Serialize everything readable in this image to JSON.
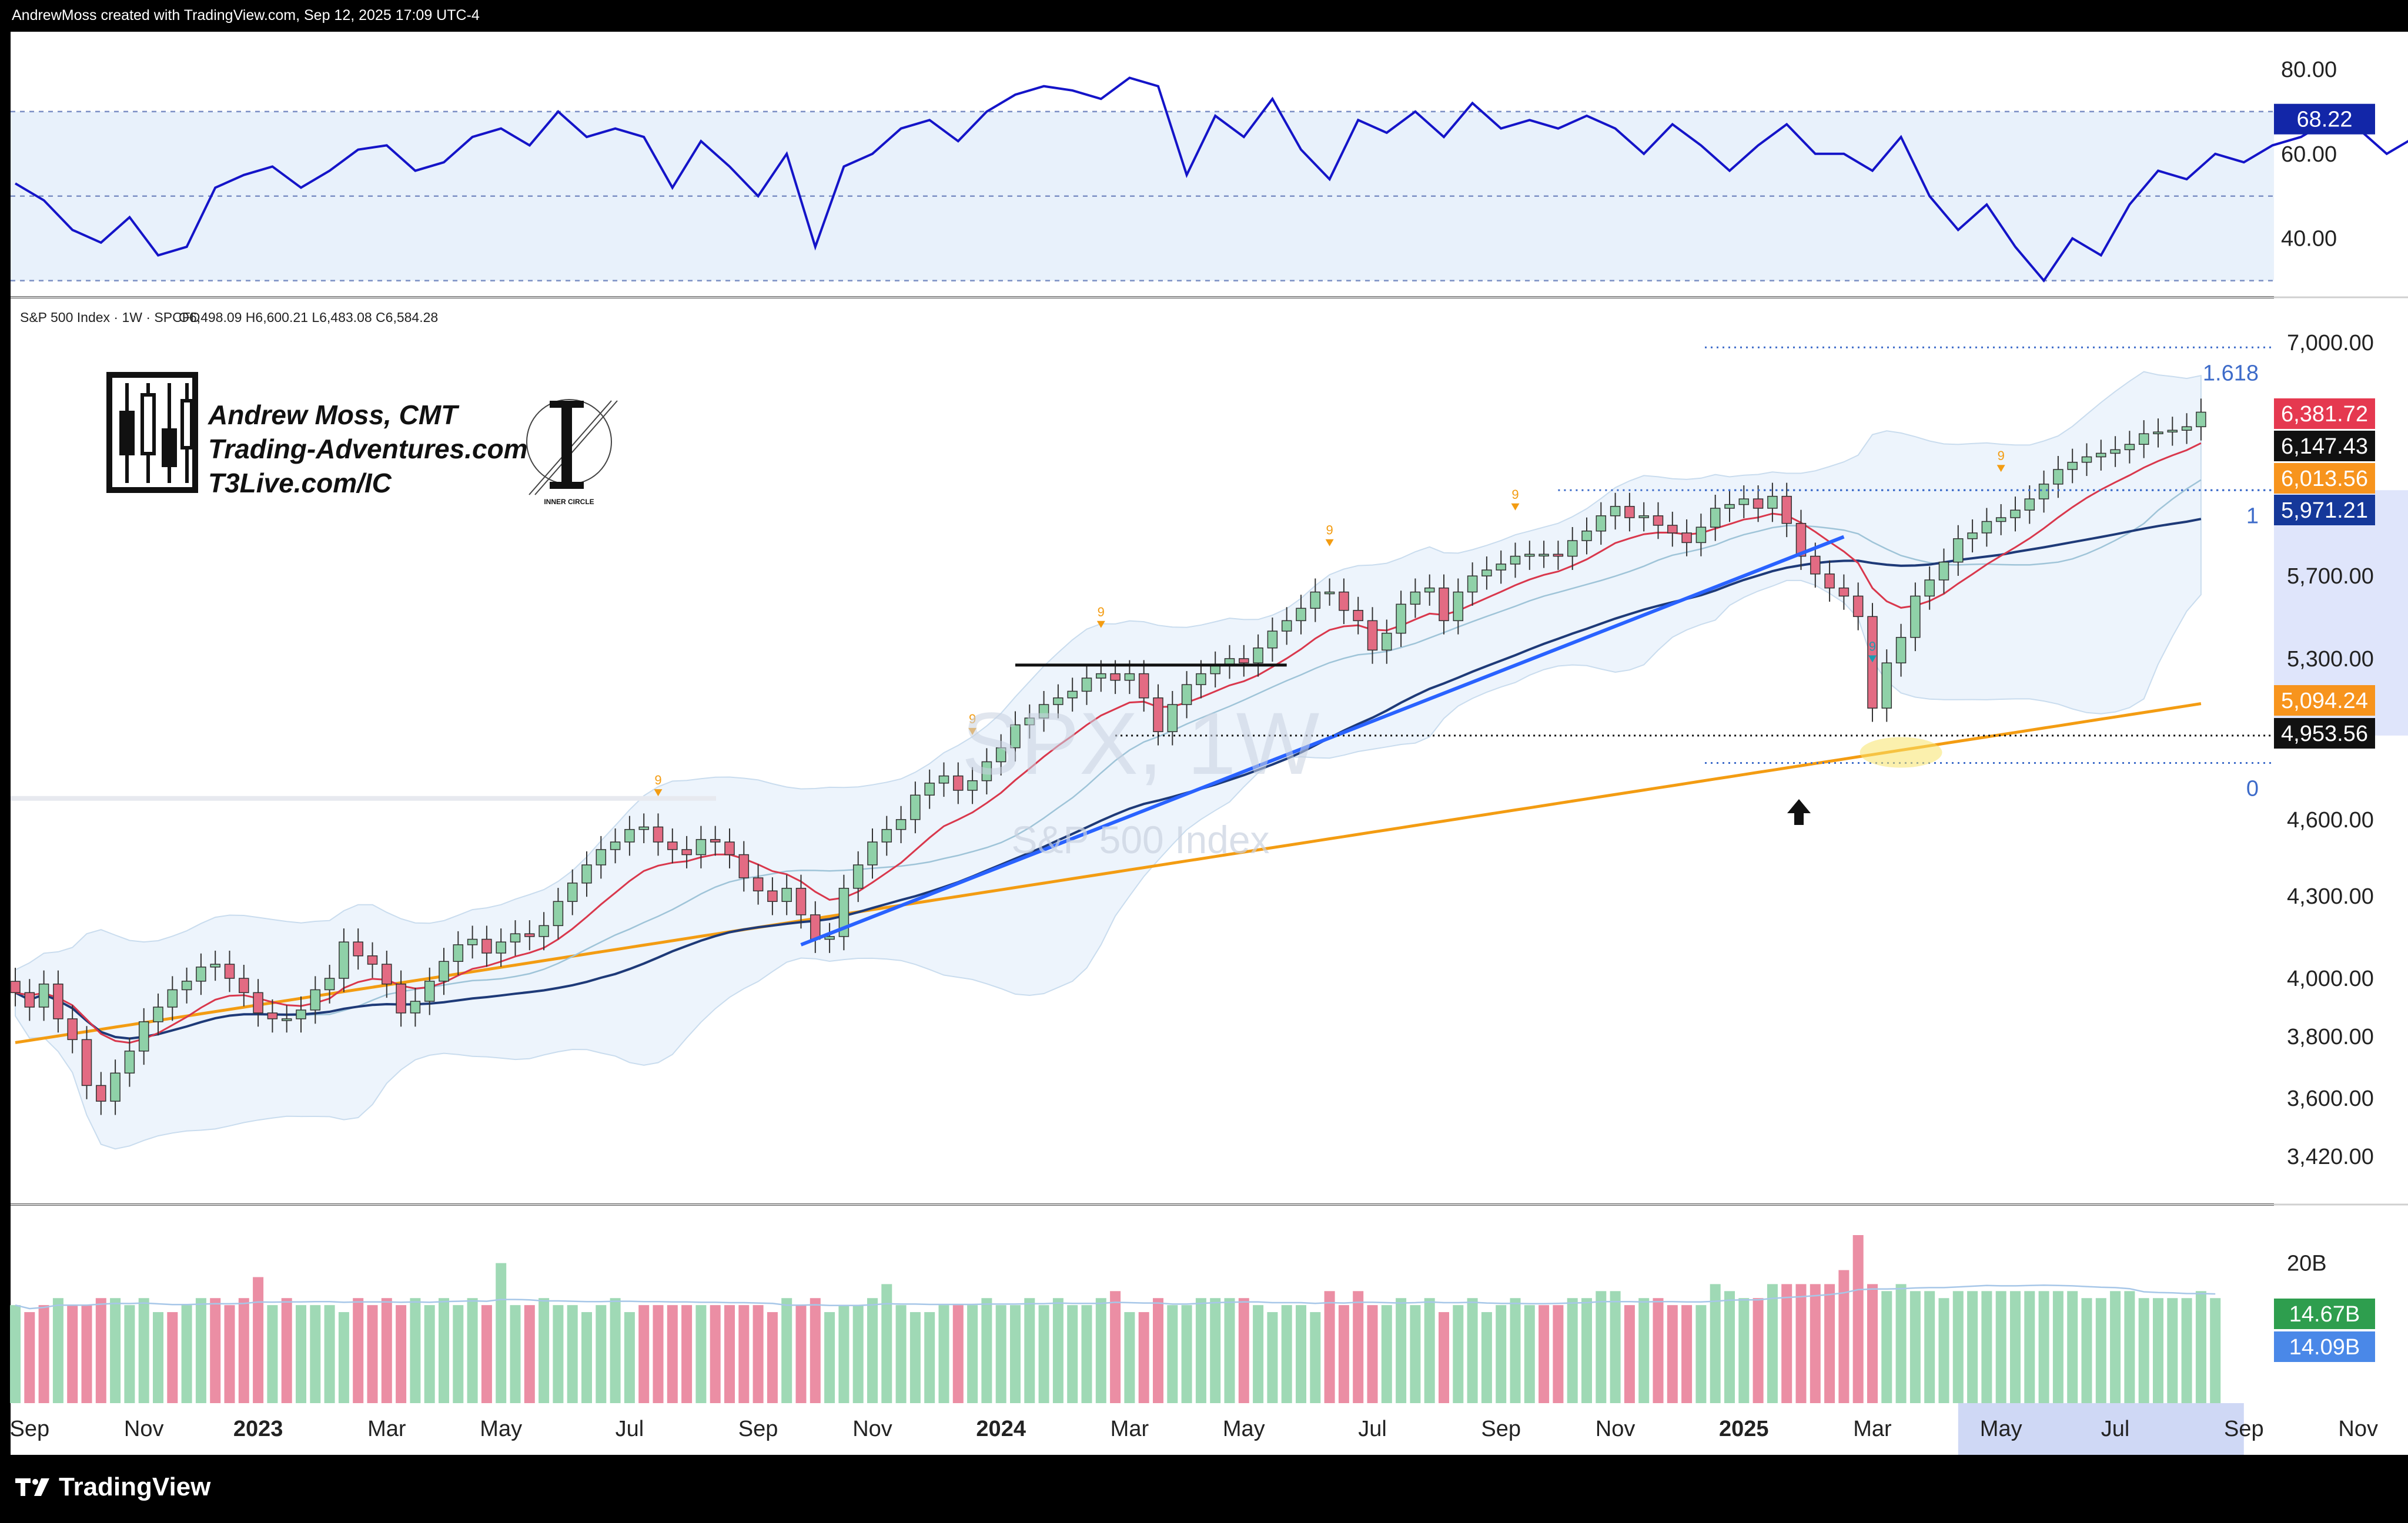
{
  "header": {
    "credit": "AndrewMoss created with TradingView.com, Sep 12, 2025 17:09 UTC-4"
  },
  "footer": {
    "brand": "TradingView"
  },
  "colors": {
    "up": "#8fd1a8",
    "down": "#e36b83",
    "ema": "#d9374c",
    "sma50": "#1e3a78",
    "sma200": "#f39c12",
    "sma_light": "#9fc4d8",
    "trend": "#2962ff",
    "rsi": "#1414c8",
    "band_fill": "#e8f1fb",
    "tag_red": "#e53950",
    "tag_black": "#111111",
    "tag_orange": "#f7941d",
    "tag_navy": "#15389a",
    "tag_blue": "#4a88e8",
    "tag_green": "#2e9e4e",
    "fib_blue": "#3d6bc9",
    "highlight": "#f8e36a"
  },
  "chart_data": [
    {
      "type": "line",
      "name": "RSI",
      "y_ticks": [
        "80.00",
        "60.00",
        "40.00"
      ],
      "y_tick_values": [
        80,
        60,
        40
      ],
      "ylim": [
        28,
        85
      ],
      "levels": [
        70,
        50,
        30
      ],
      "current_value": "68.22",
      "x_weeks": [
        0,
        2,
        4,
        6,
        8,
        10,
        12,
        14,
        16,
        18,
        20,
        22,
        24,
        26,
        28,
        30,
        32,
        34,
        36,
        38,
        40,
        42,
        44,
        46,
        48,
        50,
        52,
        54,
        56,
        58,
        60,
        62,
        64,
        66,
        68,
        70,
        72,
        74,
        76,
        78,
        80,
        82,
        84,
        86,
        88,
        90,
        92,
        94,
        96,
        98,
        100,
        102,
        104,
        106,
        108,
        110,
        112,
        114,
        116,
        118,
        120,
        122,
        124,
        126,
        128,
        130,
        132,
        134,
        136,
        138,
        140,
        142,
        144,
        146,
        148,
        150,
        152,
        154,
        156,
        158,
        160,
        162,
        164,
        166,
        168,
        170,
        172,
        174,
        176,
        178
      ],
      "values": [
        53,
        49,
        42,
        39,
        45,
        36,
        38,
        52,
        55,
        57,
        52,
        56,
        61,
        62,
        56,
        58,
        64,
        66,
        62,
        70,
        64,
        66,
        64,
        52,
        63,
        57,
        50,
        60,
        38,
        57,
        60,
        66,
        68,
        63,
        70,
        74,
        76,
        75,
        73,
        78,
        76,
        55,
        69,
        64,
        73,
        61,
        54,
        68,
        65,
        70,
        64,
        72,
        66,
        68,
        66,
        69,
        66,
        60,
        67,
        62,
        56,
        62,
        67,
        60,
        60,
        56,
        64,
        50,
        42,
        48,
        38,
        30,
        40,
        36,
        48,
        56,
        54,
        60,
        58,
        62,
        64,
        68,
        66,
        60,
        64,
        68,
        68,
        68,
        70,
        71
      ]
    },
    {
      "type": "candlestick",
      "name": "SPX",
      "legend": "S&P 500 Index · 1W · SPCFD",
      "ohlc_legend": "O6,498.09 H6,600.21 L6,483.08 C6,584.28",
      "watermark_symbol": "SPX, 1W",
      "watermark_name": "S&P 500 Index",
      "y_ticks": [
        "7,000.00",
        "5,700.00",
        "5,300.00",
        "4,600.00",
        "4,300.00",
        "4,000.00",
        "3,800.00",
        "3,600.00",
        "3,420.00"
      ],
      "y_tick_values": [
        7000,
        5700,
        5300,
        4600,
        4300,
        4000,
        3800,
        3600,
        3420
      ],
      "ylim": [
        3300,
        7150
      ],
      "log_scale": true,
      "fib_levels": [
        {
          "label": "1.618",
          "value": 6970
        },
        {
          "label": "1",
          "value": 6147
        },
        {
          "label": "0",
          "value": 4835
        }
      ],
      "price_tags": [
        {
          "value": "6,381.72",
          "num": 6381.72,
          "color": "#e53950"
        },
        {
          "value": "6,147.43",
          "num": 6147.43,
          "color": "#111111"
        },
        {
          "value": "6,013.56",
          "num": 6013.56,
          "color": "#f7941d"
        },
        {
          "value": "5,971.21",
          "num": 5971.21,
          "color": "#15389a"
        },
        {
          "value": "5,094.24",
          "num": 5094.24,
          "color": "#f7941d"
        },
        {
          "value": "4,953.56",
          "num": 4953.56,
          "color": "#111111"
        }
      ],
      "x_labels": [
        {
          "label": "Sep",
          "week": 1,
          "bold": false
        },
        {
          "label": "Nov",
          "week": 9,
          "bold": false
        },
        {
          "label": "2023",
          "week": 17,
          "bold": true
        },
        {
          "label": "Mar",
          "week": 26,
          "bold": false
        },
        {
          "label": "May",
          "week": 34,
          "bold": false
        },
        {
          "label": "Jul",
          "week": 43,
          "bold": false
        },
        {
          "label": "Sep",
          "week": 52,
          "bold": false
        },
        {
          "label": "Nov",
          "week": 60,
          "bold": false
        },
        {
          "label": "2024",
          "week": 69,
          "bold": true
        },
        {
          "label": "Mar",
          "week": 78,
          "bold": false
        },
        {
          "label": "May",
          "week": 86,
          "bold": false
        },
        {
          "label": "Jul",
          "week": 95,
          "bold": false
        },
        {
          "label": "Sep",
          "week": 104,
          "bold": false
        },
        {
          "label": "Nov",
          "week": 112,
          "bold": false
        },
        {
          "label": "2025",
          "week": 121,
          "bold": true
        },
        {
          "label": "Mar",
          "week": 130,
          "bold": false
        },
        {
          "label": "May",
          "week": 139,
          "bold": false
        },
        {
          "label": "Jul",
          "week": 147,
          "bold": false
        },
        {
          "label": "Sep",
          "week": 156,
          "bold": false
        },
        {
          "label": "Nov",
          "week": 164,
          "bold": false
        }
      ],
      "closes": [
        3950,
        3900,
        3980,
        3860,
        3790,
        3640,
        3590,
        3680,
        3752,
        3850,
        3900,
        3960,
        3990,
        4040,
        4050,
        4000,
        3950,
        3880,
        3860,
        3860,
        3890,
        3960,
        4000,
        4130,
        4080,
        4050,
        3980,
        3880,
        3920,
        3990,
        4060,
        4120,
        4140,
        4090,
        4130,
        4160,
        4150,
        4190,
        4280,
        4350,
        4420,
        4480,
        4510,
        4560,
        4570,
        4510,
        4480,
        4460,
        4520,
        4510,
        4460,
        4370,
        4320,
        4280,
        4330,
        4230,
        4140,
        4150,
        4330,
        4420,
        4510,
        4560,
        4600,
        4700,
        4750,
        4780,
        4720,
        4760,
        4840,
        4900,
        5000,
        5030,
        5090,
        5120,
        5150,
        5210,
        5230,
        5200,
        5230,
        5120,
        4970,
        5090,
        5180,
        5230,
        5270,
        5300,
        5280,
        5350,
        5430,
        5480,
        5540,
        5620,
        5620,
        5530,
        5480,
        5340,
        5420,
        5560,
        5620,
        5640,
        5480,
        5620,
        5700,
        5730,
        5760,
        5800,
        5810,
        5810,
        5800,
        5880,
        5930,
        6010,
        6060,
        6000,
        6010,
        5960,
        5920,
        5870,
        5950,
        6050,
        6070,
        6100,
        6050,
        6114,
        5970,
        5800,
        5710,
        5640,
        5600,
        5500,
        5074,
        5280,
        5400,
        5600,
        5680,
        5770,
        5890,
        5920,
        5980,
        6000,
        6040,
        6100,
        6180,
        6260,
        6300,
        6330,
        6350,
        6370,
        6400,
        6460,
        6470,
        6480,
        6500,
        6584
      ],
      "annotations": [
        {
          "text": "9",
          "week": 45,
          "color": "#f39c12"
        },
        {
          "text": "9",
          "week": 67,
          "color": "#f39c12"
        },
        {
          "text": "9",
          "week": 76,
          "color": "#f39c12"
        },
        {
          "text": "9",
          "week": 92,
          "color": "#f39c12"
        },
        {
          "text": "9",
          "week": 105,
          "color": "#f39c12"
        },
        {
          "text": "9",
          "week": 139,
          "color": "#f39c12"
        },
        {
          "text": "9",
          "week": 130,
          "color": "#1a9bb0"
        }
      ]
    },
    {
      "type": "bar",
      "name": "Volume",
      "y_ticks": [
        "20B"
      ],
      "y_tick_values": [
        20
      ],
      "ylim": [
        0,
        24
      ],
      "tags": [
        {
          "value": "14.67B",
          "color": "#2e9e4e"
        },
        {
          "value": "14.09B",
          "color": "#4a88e8"
        }
      ],
      "values": [
        14,
        13,
        14,
        15,
        14,
        14,
        15,
        15,
        14,
        15,
        13,
        13,
        14,
        15,
        15,
        14,
        15,
        18,
        14,
        15,
        14,
        14,
        14,
        13,
        15,
        14,
        15,
        14,
        15,
        14,
        15,
        14,
        15,
        14,
        20,
        14,
        14,
        15,
        14,
        14,
        13,
        14,
        15,
        13,
        14,
        14,
        14,
        14,
        14,
        14,
        14,
        14,
        14,
        13,
        15,
        14,
        15,
        13,
        14,
        14,
        15,
        17,
        14,
        13,
        13,
        14,
        14,
        14,
        15,
        14,
        14,
        15,
        14,
        15,
        14,
        14,
        15,
        16,
        13,
        13,
        15,
        14,
        14,
        15,
        15,
        15,
        15,
        14,
        13,
        14,
        14,
        13,
        16,
        14,
        16,
        14,
        14,
        15,
        14,
        15,
        13,
        14,
        15,
        13,
        14,
        15,
        14,
        14,
        14,
        15,
        15,
        16,
        16,
        14,
        15,
        15,
        14,
        14,
        14,
        17,
        16,
        15,
        15,
        17,
        17,
        17,
        17,
        17,
        19,
        24,
        17,
        16,
        17,
        16,
        16,
        15,
        16,
        16,
        16,
        16,
        16,
        16,
        16,
        16,
        16,
        15,
        15,
        16,
        16,
        15,
        15,
        15,
        15,
        16,
        15
      ],
      "up": [
        true,
        false,
        false,
        true,
        false,
        false,
        false,
        true,
        true,
        true,
        true,
        false,
        true,
        true,
        false,
        false,
        false,
        false,
        true,
        false,
        true,
        true,
        true,
        true,
        false,
        false,
        false,
        false,
        true,
        true,
        true,
        true,
        true,
        false,
        true,
        true,
        false,
        true,
        true,
        true,
        true,
        true,
        true,
        true,
        false,
        false,
        false,
        false,
        true,
        false,
        false,
        false,
        false,
        false,
        true,
        false,
        false,
        true,
        true,
        true,
        true,
        true,
        true,
        true,
        true,
        true,
        false,
        true,
        true,
        true,
        true,
        true,
        true,
        true,
        true,
        true,
        true,
        false,
        true,
        false,
        false,
        true,
        true,
        true,
        true,
        true,
        false,
        true,
        true,
        true,
        true,
        true,
        false,
        false,
        false,
        false,
        true,
        true,
        true,
        true,
        false,
        true,
        true,
        true,
        true,
        true,
        true,
        false,
        false,
        true,
        true,
        true,
        true,
        false,
        true,
        false,
        false,
        false,
        true,
        true,
        true,
        true,
        false,
        true,
        false,
        false,
        false,
        false,
        false,
        false,
        false,
        true,
        true,
        true,
        true,
        true,
        true,
        true,
        true,
        true,
        true,
        true,
        true,
        true,
        true,
        true,
        true,
        true,
        true,
        true,
        true,
        true,
        true,
        true,
        true
      ]
    }
  ],
  "logo": {
    "line1": "Andrew Moss, CMT",
    "line2": "Trading-Adventures.com",
    "line3": "T3Live.com/IC",
    "seal_caption": "INNER CIRCLE"
  }
}
